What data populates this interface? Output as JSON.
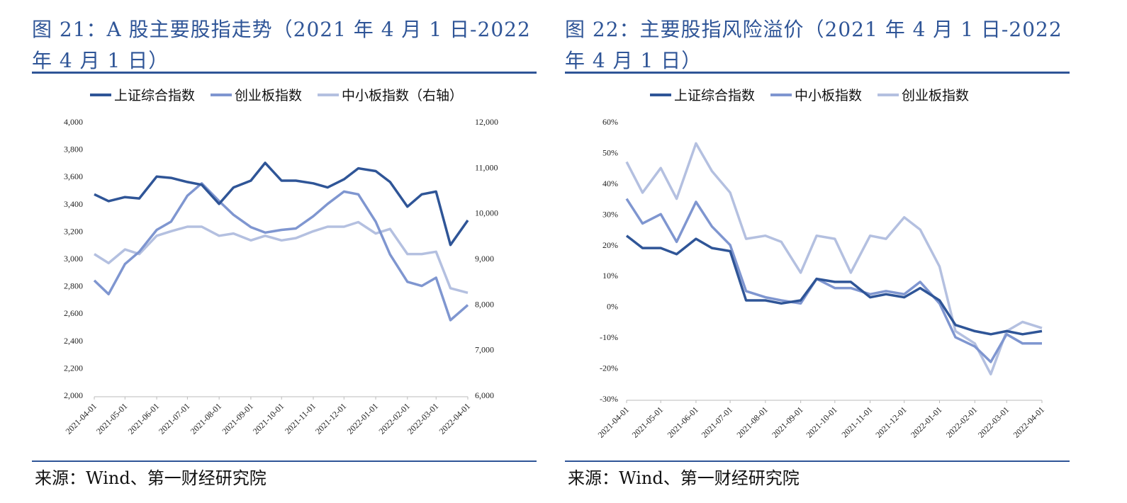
{
  "colors": {
    "title": "#2F5597",
    "series": [
      "#2F5597",
      "#7F96D0",
      "#B4C0E0"
    ]
  },
  "x_ticks": [
    "2021-04-01",
    "2021-05-01",
    "2021-06-01",
    "2021-07-01",
    "2021-08-01",
    "2021-09-01",
    "2021-10-01",
    "2021-11-01",
    "2021-12-01",
    "2022-01-01",
    "2022-02-01",
    "2022-03-01",
    "2022-04-01"
  ],
  "dates": [
    "2021-04-01",
    "2021-04-15",
    "2021-05-01",
    "2021-05-15",
    "2021-06-01",
    "2021-06-15",
    "2021-07-01",
    "2021-07-15",
    "2021-08-01",
    "2021-08-15",
    "2021-09-01",
    "2021-09-15",
    "2021-10-01",
    "2021-10-15",
    "2021-11-01",
    "2021-11-15",
    "2021-12-01",
    "2021-12-15",
    "2022-01-01",
    "2022-01-15",
    "2022-02-01",
    "2022-02-15",
    "2022-03-01",
    "2022-03-15",
    "2022-04-01"
  ],
  "left": {
    "title": "图 21：A 股主要股指走势（2021 年 4 月 1 日-2022 年 4 月 1 日）",
    "source": "来源：Wind、第一财经研究院",
    "chart_data": {
      "type": "line",
      "ylim": [
        2000,
        4000
      ],
      "y2lim": [
        6000,
        12000
      ],
      "y_ticks": [
        "4,000",
        "3,800",
        "3,600",
        "3,400",
        "3,200",
        "3,000",
        "2,800",
        "2,600",
        "2,400",
        "2,200",
        "2,000"
      ],
      "y2_ticks": [
        "12,000",
        "11,000",
        "10,000",
        "9,000",
        "8,000",
        "7,000",
        "6,000"
      ],
      "legend": "top",
      "series": [
        {
          "name": "上证综合指数",
          "axis": "left",
          "values": [
            3470,
            3420,
            3450,
            3440,
            3600,
            3590,
            3560,
            3540,
            3400,
            3520,
            3570,
            3700,
            3570,
            3570,
            3550,
            3520,
            3580,
            3660,
            3640,
            3560,
            3380,
            3470,
            3490,
            3100,
            3280
          ]
        },
        {
          "name": "创业板指数",
          "axis": "left",
          "values": [
            2840,
            2740,
            2960,
            3050,
            3210,
            3270,
            3460,
            3550,
            3420,
            3320,
            3230,
            3190,
            3210,
            3220,
            3310,
            3400,
            3490,
            3470,
            3270,
            3030,
            2830,
            2800,
            2860,
            2550,
            2660
          ]
        },
        {
          "name": "中小板指数（右轴）",
          "axis": "right",
          "values": [
            9100,
            8900,
            9200,
            9100,
            9500,
            9600,
            9700,
            9700,
            9500,
            9550,
            9400,
            9500,
            9400,
            9450,
            9600,
            9700,
            9700,
            9800,
            9550,
            9650,
            9100,
            9100,
            9150,
            8350,
            8250
          ]
        }
      ]
    }
  },
  "right": {
    "title": "图 22：主要股指风险溢价（2021 年 4 月 1 日-2022 年 4 月 1 日）",
    "source": "来源：Wind、第一财经研究院",
    "chart_data": {
      "type": "line",
      "ylim": [
        -30,
        60
      ],
      "y_ticks": [
        "60%",
        "50%",
        "40%",
        "30%",
        "20%",
        "10%",
        "0%",
        "-10%",
        "-20%",
        "-30%"
      ],
      "legend": "top",
      "series": [
        {
          "name": "上证综合指数",
          "values": [
            23,
            19,
            19,
            17,
            22,
            19,
            18,
            2,
            2,
            1,
            2,
            9,
            8,
            8,
            3,
            4,
            3,
            6,
            2,
            -6,
            -8,
            -9,
            -8,
            -9,
            -8
          ]
        },
        {
          "name": "中小板指数",
          "values": [
            35,
            27,
            30,
            21,
            34,
            26,
            20,
            5,
            3,
            2,
            1,
            9,
            6,
            6,
            4,
            5,
            4,
            8,
            1,
            -10,
            -13,
            -18,
            -9,
            -12,
            -12
          ]
        },
        {
          "name": "创业板指数",
          "values": [
            47,
            37,
            45,
            35,
            53,
            44,
            37,
            22,
            23,
            21,
            11,
            23,
            22,
            11,
            23,
            22,
            29,
            25,
            13,
            -8,
            -12,
            -22,
            -8,
            -5,
            -7
          ]
        }
      ]
    }
  }
}
